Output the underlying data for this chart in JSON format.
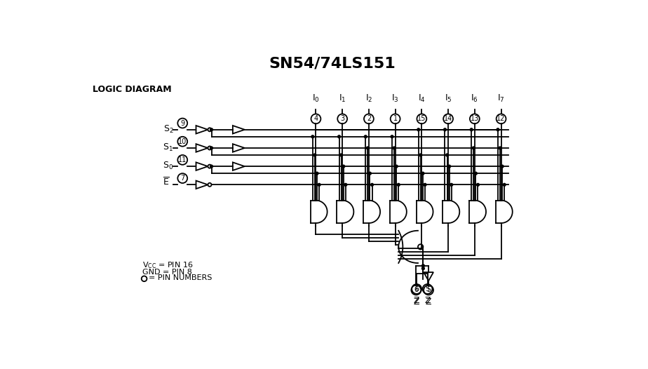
{
  "title": "SN54/74LS151",
  "logic_diagram_label": "LOGIC DIAGRAM",
  "bg_color": "#ffffff",
  "line_color": "#000000",
  "input_signals": [
    "S2",
    "S1",
    "S0",
    "E"
  ],
  "input_pins": [
    9,
    10,
    11,
    7
  ],
  "data_labels": [
    "I0",
    "I1",
    "I2",
    "I3",
    "I4",
    "I5",
    "I6",
    "I7"
  ],
  "data_pins": [
    4,
    3,
    2,
    1,
    15,
    14,
    13,
    12
  ],
  "output_pins": [
    6,
    5
  ],
  "output_labels": [
    "Z",
    "Z"
  ],
  "vcc_label": "V",
  "legend_lines": [
    "VCC = PIN 16",
    "GND = PIN 8",
    "= PIN NUMBERS"
  ]
}
